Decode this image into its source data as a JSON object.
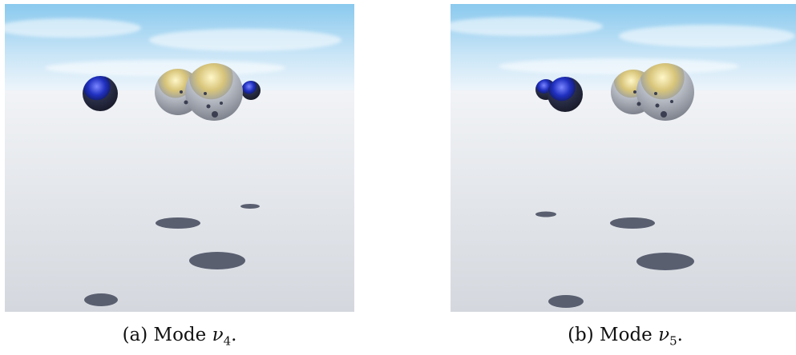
{
  "figure": {
    "panels": [
      {
        "id": "a",
        "caption_prefix": "(a) Mode ",
        "mode_symbol": "ν",
        "mode_index": "4",
        "caption_suffix": "."
      },
      {
        "id": "b",
        "caption_prefix": "(b) Mode ",
        "mode_symbol": "ν",
        "mode_index": "5",
        "caption_suffix": "."
      }
    ],
    "colors": {
      "sky_top": "#7fc3ea",
      "sky_horizon": "#eef5fb",
      "floor_near": "#d7dbe0",
      "shadow": "#5a5f70",
      "blue_sphere": "#1b2aa8",
      "gold_sphere": "#c9b96a"
    }
  }
}
